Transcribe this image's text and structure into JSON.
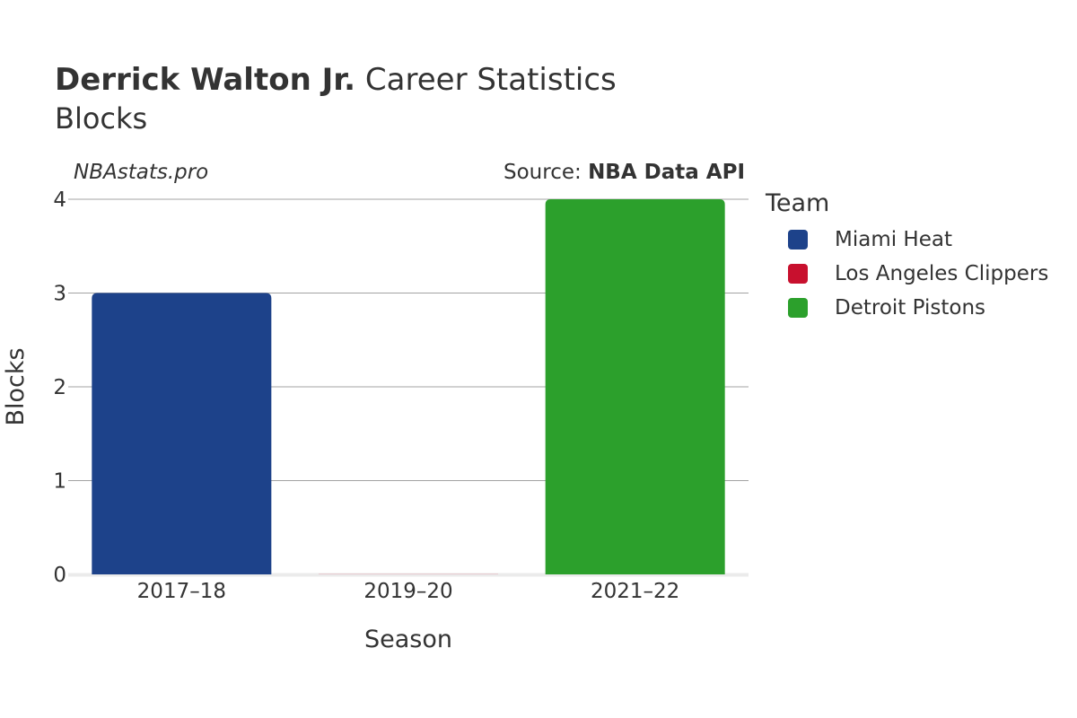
{
  "header": {
    "title_bold": "Derrick Walton Jr.",
    "title_rest": "Career Statistics",
    "subtitle": "Blocks",
    "credit": "NBAstats.pro",
    "source_prefix": "Source: ",
    "source_name": "NBA Data API"
  },
  "legend": {
    "title": "Team",
    "items": [
      {
        "label": "Miami Heat",
        "color": "#1d428a"
      },
      {
        "label": "Los Angeles Clippers",
        "color": "#c8102e"
      },
      {
        "label": "Detroit Pistons",
        "color": "#2ca02c"
      }
    ]
  },
  "chart_data": {
    "type": "bar",
    "title": "Derrick Walton Jr. Career Statistics",
    "subtitle": "Blocks",
    "xlabel": "Season",
    "ylabel": "Blocks",
    "categories": [
      "2017–18",
      "2019–20",
      "2021–22"
    ],
    "ylim": [
      0,
      4
    ],
    "yticks": [
      0,
      1,
      2,
      3,
      4
    ],
    "grid": true,
    "legend_position": "right",
    "series": [
      {
        "name": "Miami Heat",
        "color": "#1d428a",
        "values": [
          3,
          null,
          null
        ]
      },
      {
        "name": "Los Angeles Clippers",
        "color": "#c8102e",
        "values": [
          null,
          0,
          null
        ]
      },
      {
        "name": "Detroit Pistons",
        "color": "#2ca02c",
        "values": [
          null,
          null,
          4
        ]
      }
    ]
  }
}
